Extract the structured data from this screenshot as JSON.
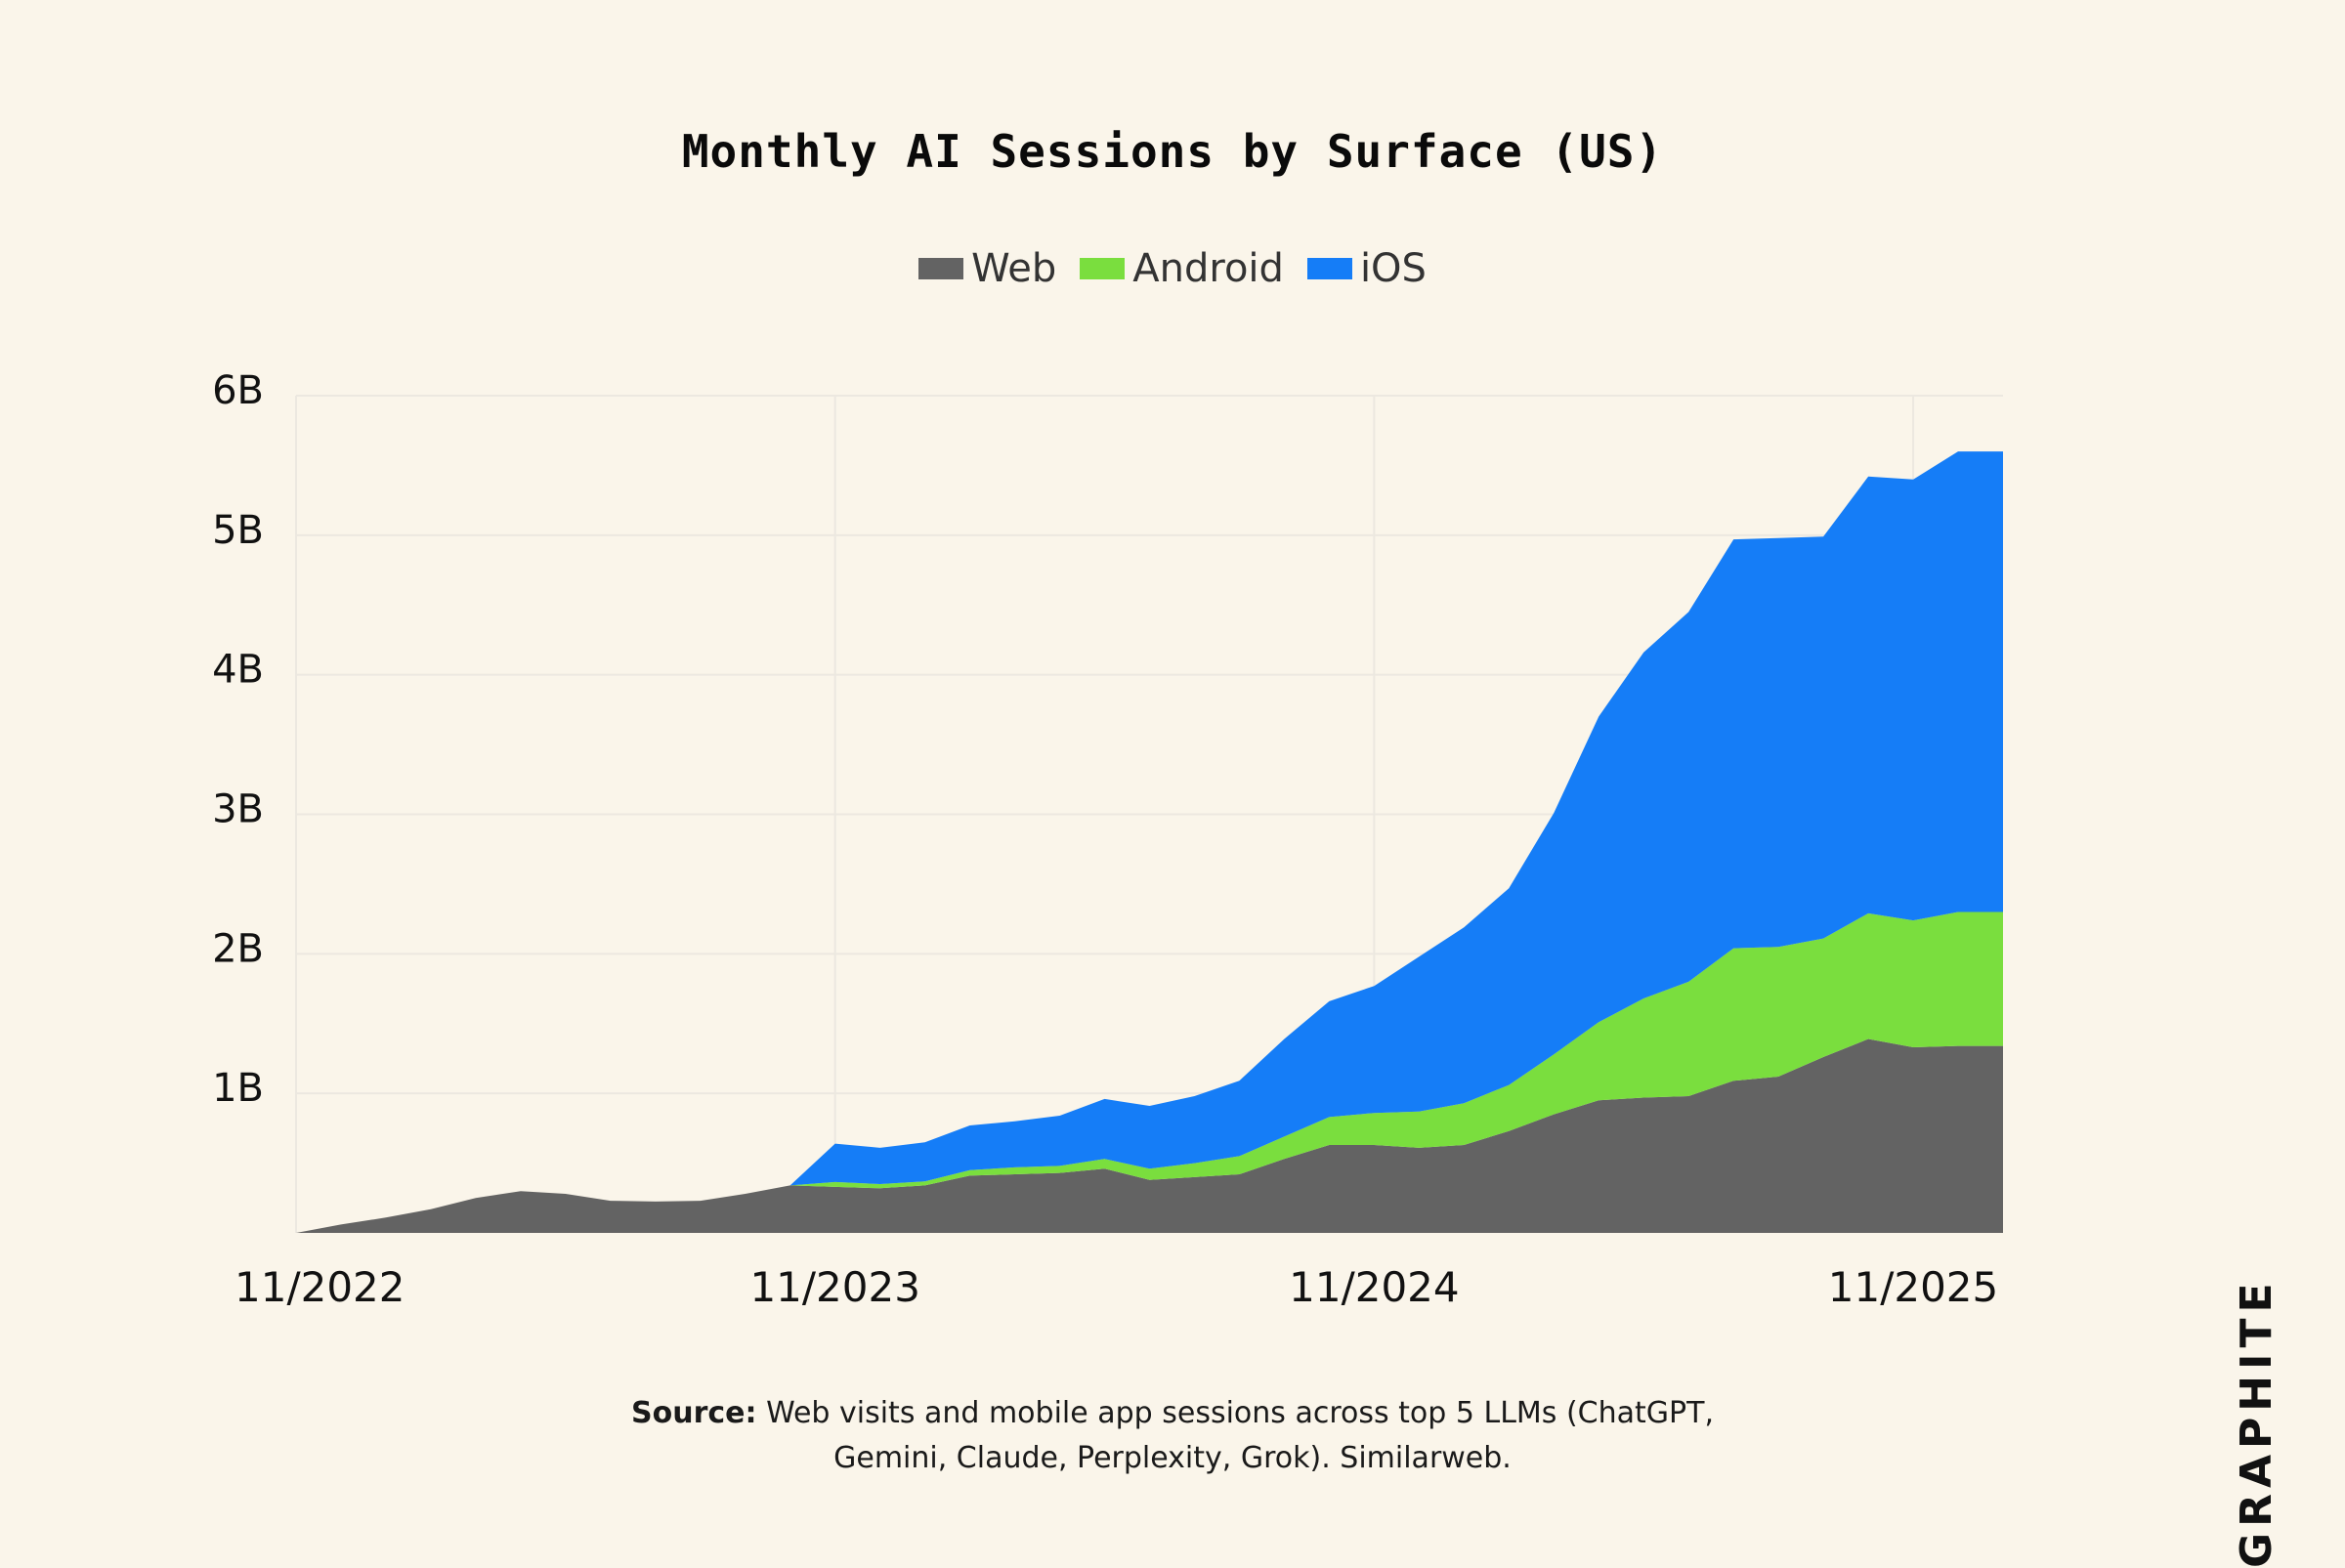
{
  "chart_data": {
    "type": "area",
    "stacked": true,
    "title": "Monthly AI Sessions by Surface (US)",
    "legend": [
      "Web",
      "Android",
      "iOS"
    ],
    "legend_position": "top-center",
    "colors": {
      "Web": "#636363",
      "Android": "#7ade3e",
      "iOS": "#157df7",
      "background": "#faf5ea",
      "grid": "#ece8e0"
    },
    "x_tick_labels": [
      "11/2022",
      "11/2023",
      "11/2024",
      "11/2025"
    ],
    "y_tick_labels": [
      "1B",
      "2B",
      "3B",
      "4B",
      "5B",
      "6B"
    ],
    "ylim": [
      0,
      6
    ],
    "y_unit": "B",
    "grid": true,
    "months": [
      "11/2022",
      "12/2022",
      "1/2023",
      "2/2023",
      "3/2023",
      "4/2023",
      "5/2023",
      "6/2023",
      "7/2023",
      "8/2023",
      "9/2023",
      "10/2023",
      "11/2023",
      "12/2023",
      "1/2024",
      "2/2024",
      "3/2024",
      "4/2024",
      "5/2024",
      "6/2024",
      "7/2024",
      "8/2024",
      "9/2024",
      "10/2024",
      "11/2024",
      "12/2024",
      "1/2025",
      "2/2025",
      "3/2025",
      "4/2025",
      "5/2025",
      "6/2025",
      "7/2025",
      "8/2025",
      "9/2025",
      "10/2025",
      "11/2025",
      "12/2025",
      "1/2026"
    ],
    "series": [
      {
        "name": "Web",
        "values": [
          0.0,
          0.06,
          0.11,
          0.17,
          0.25,
          0.3,
          0.28,
          0.23,
          0.225,
          0.23,
          0.28,
          0.34,
          0.33,
          0.32,
          0.34,
          0.41,
          0.42,
          0.43,
          0.46,
          0.38,
          0.4,
          0.42,
          0.53,
          0.63,
          0.63,
          0.61,
          0.63,
          0.73,
          0.85,
          0.95,
          0.97,
          0.98,
          1.09,
          1.12,
          1.26,
          1.39,
          1.33,
          1.34,
          1.34
        ]
      },
      {
        "name": "Android",
        "values": [
          0,
          0,
          0,
          0,
          0,
          0,
          0,
          0,
          0,
          0,
          0,
          0,
          0.035,
          0.03,
          0.03,
          0.04,
          0.05,
          0.05,
          0.07,
          0.08,
          0.1,
          0.13,
          0.16,
          0.2,
          0.23,
          0.26,
          0.3,
          0.33,
          0.43,
          0.56,
          0.71,
          0.82,
          0.95,
          0.93,
          0.85,
          0.9,
          0.91,
          0.96,
          0.96
        ]
      },
      {
        "name": "iOS",
        "values": [
          0,
          0,
          0,
          0,
          0,
          0,
          0,
          0,
          0,
          0,
          0,
          0,
          0.275,
          0.26,
          0.28,
          0.32,
          0.33,
          0.36,
          0.43,
          0.45,
          0.48,
          0.54,
          0.7,
          0.83,
          0.91,
          1.11,
          1.26,
          1.41,
          1.73,
          2.19,
          2.48,
          2.65,
          2.93,
          2.93,
          2.88,
          3.13,
          3.16,
          3.3,
          3.3
        ]
      }
    ],
    "source_label": "Source:",
    "source_text_line1": "Web visits and mobile app sessions across top 5 LLMs (ChatGPT,",
    "source_text_line2": "Gemini, Claude, Perplexity, Grok). Similarweb."
  },
  "brand": "GRAPHITE"
}
